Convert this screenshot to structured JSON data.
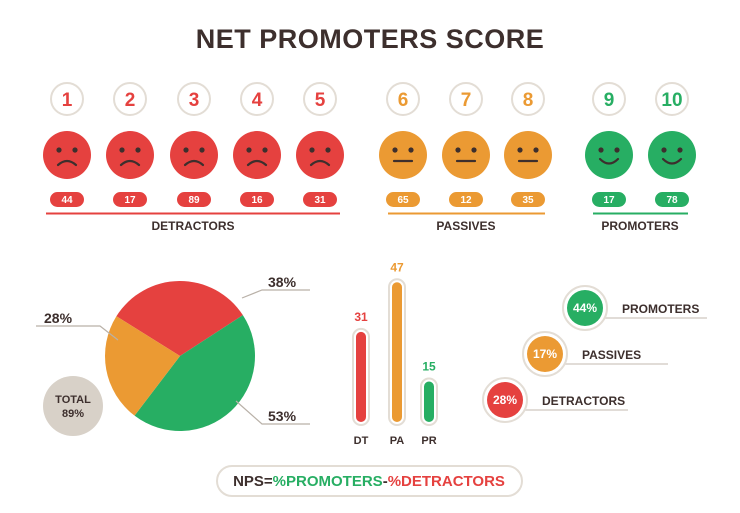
{
  "title": "NET PROMOTERS SCORE",
  "colors": {
    "detractor": "#e5413f",
    "passive": "#eb9a33",
    "promoter": "#27ae63",
    "ink": "#3d2f2d",
    "total_bg": "#d8d1c8",
    "ring": "#e3ddd5"
  },
  "scores": [
    {
      "number": "1",
      "count": "44",
      "group": "detractor",
      "face": "sad-face-icon"
    },
    {
      "number": "2",
      "count": "17",
      "group": "detractor",
      "face": "sad-face-icon"
    },
    {
      "number": "3",
      "count": "89",
      "group": "detractor",
      "face": "sad-face-icon"
    },
    {
      "number": "4",
      "count": "16",
      "group": "detractor",
      "face": "sad-face-icon"
    },
    {
      "number": "5",
      "count": "31",
      "group": "detractor",
      "face": "sad-face-icon"
    },
    {
      "number": "6",
      "count": "65",
      "group": "passive",
      "face": "neutral-face-icon"
    },
    {
      "number": "7",
      "count": "12",
      "group": "passive",
      "face": "neutral-face-icon"
    },
    {
      "number": "8",
      "count": "35",
      "group": "passive",
      "face": "neutral-face-icon"
    },
    {
      "number": "9",
      "count": "17",
      "group": "promoter",
      "face": "happy-face-icon"
    },
    {
      "number": "10",
      "count": "78",
      "group": "promoter",
      "face": "happy-face-icon"
    }
  ],
  "groups": {
    "detractors": "DETRACTORS",
    "passives": "PASSIVES",
    "promoters": "PROMOTERS"
  },
  "pie": {
    "slices": [
      {
        "label": "38%",
        "value": 38,
        "group": "detractor"
      },
      {
        "label": "53%",
        "value": 53,
        "group": "promoter"
      },
      {
        "label": "28%",
        "value": 28,
        "group": "passive"
      }
    ],
    "total_label": "TOTAL",
    "total_value": "89%"
  },
  "bars": [
    {
      "category": "DT",
      "value": 31,
      "group": "detractor"
    },
    {
      "category": "PA",
      "value": 47,
      "group": "passive"
    },
    {
      "category": "PR",
      "value": 15,
      "group": "promoter"
    }
  ],
  "bubbles": [
    {
      "value": "44%",
      "label": "PROMOTERS",
      "group": "promoter"
    },
    {
      "value": "17%",
      "label": "PASSIVES",
      "group": "passive"
    },
    {
      "value": "28%",
      "label": "DETRACTORS",
      "group": "detractor"
    }
  ],
  "formula": {
    "prefix": "NPS=",
    "promoters": "%PROMOTERS",
    "minus": "-",
    "detractors": "%DETRACTORS"
  }
}
